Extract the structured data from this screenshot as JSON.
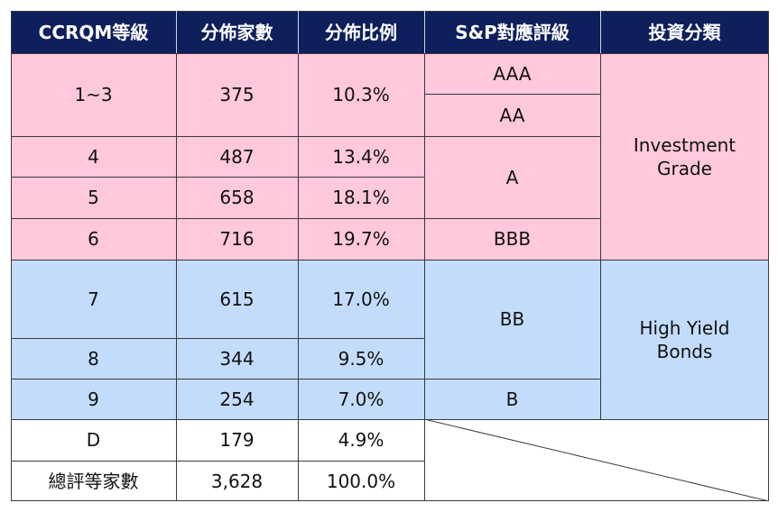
{
  "colors": {
    "header_bg": "#0e1f5c",
    "investment_grade_bg": "#ffc8dc",
    "high_yield_bg": "#c4dcfb",
    "grid_line": "#3a3a3a"
  },
  "headers": [
    "CCRQM等級",
    "分佈家數",
    "分佈比例",
    "S&P對應評級",
    "投資分類"
  ],
  "rows": [
    {
      "grade": "1~3",
      "count": "375",
      "pct": "10.3%"
    },
    {
      "grade": "4",
      "count": "487",
      "pct": "13.4%"
    },
    {
      "grade": "5",
      "count": "658",
      "pct": "18.1%"
    },
    {
      "grade": "6",
      "count": "716",
      "pct": "19.7%"
    },
    {
      "grade": "7",
      "count": "615",
      "pct": "17.0%"
    },
    {
      "grade": "8",
      "count": "344",
      "pct": "9.5%"
    },
    {
      "grade": "9",
      "count": "254",
      "pct": "7.0%"
    },
    {
      "grade": "D",
      "count": "179",
      "pct": "4.9%"
    }
  ],
  "total": {
    "label": "總評等家數",
    "count": "3,628",
    "pct": "100.0%"
  },
  "sp_ratings": [
    "AAA",
    "AA",
    "A",
    "BBB",
    "BB",
    "B"
  ],
  "categories": {
    "investment_grade": "Investment\nGrade",
    "high_yield": "High Yield\nBonds"
  }
}
